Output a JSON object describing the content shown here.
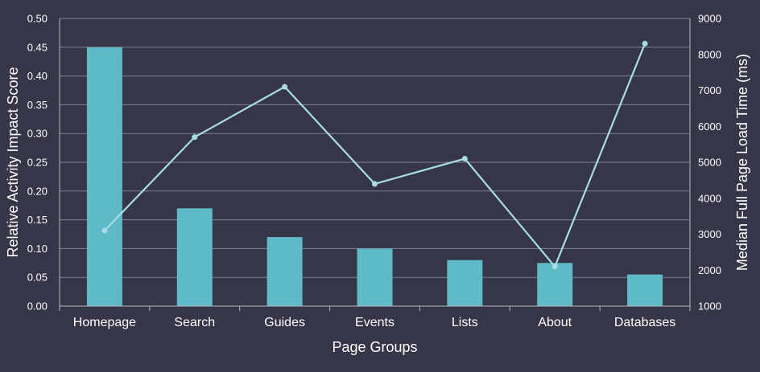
{
  "chart_data": {
    "type": "bar",
    "title": "",
    "categories": [
      "Homepage",
      "Search",
      "Guides",
      "Events",
      "Lists",
      "About",
      "Databases"
    ],
    "series": [
      {
        "name": "Relative Activity Impact Score",
        "type": "bar",
        "axis": "left",
        "color": "#5fbac8",
        "values": [
          0.45,
          0.17,
          0.12,
          0.1,
          0.08,
          0.075,
          0.055
        ]
      },
      {
        "name": "Median Full Page Load Time (ms)",
        "type": "line",
        "axis": "right",
        "color": "#a8dce4",
        "values": [
          3100,
          5700,
          7100,
          4400,
          5100,
          2100,
          8300
        ]
      }
    ],
    "xlabel": "Page Groups",
    "ylabel": "Relative Activity Impact Score",
    "y2label": "Median Full Page Load Time (ms)",
    "ylim": [
      0,
      0.5
    ],
    "y2lim": [
      1000,
      9000
    ],
    "yticks": [
      "0.00",
      "0.05",
      "0.10",
      "0.15",
      "0.20",
      "0.25",
      "0.30",
      "0.35",
      "0.40",
      "0.45",
      "0.50"
    ],
    "y2ticks": [
      "1000",
      "2000",
      "3000",
      "4000",
      "5000",
      "6000",
      "7000",
      "8000",
      "9000"
    ],
    "grid": true,
    "legend": "none"
  }
}
